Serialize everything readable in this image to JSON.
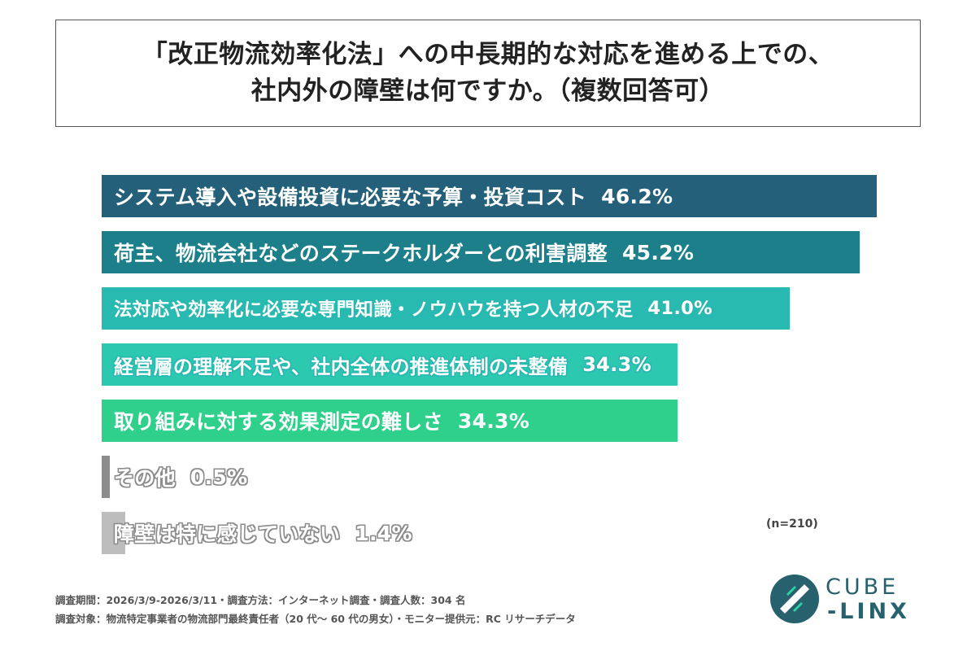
{
  "title": {
    "line1": "「改正物流効率化法」への中長期的な対応を進める上での、",
    "line2": "社内外の障壁は何ですか。（複数回答可）"
  },
  "chart_data": {
    "type": "bar",
    "orientation": "horizontal",
    "categories": [
      "システム導入や設備投資に必要な予算・投資コスト",
      "荷主、物流会社などのステークホルダーとの利害調整",
      "法対応や効率化に必要な専門知識・ノウハウを持つ人材の不足",
      "経営層の理解不足や、社内全体の推進体制の未整備",
      "取り組みに対する効果測定の難しさ",
      "その他",
      "障壁は特に感じていない"
    ],
    "values": [
      46.2,
      45.2,
      41.0,
      34.3,
      34.3,
      0.5,
      1.4
    ],
    "value_labels": [
      "46.2%",
      "45.2%",
      "41.0%",
      "34.3%",
      "34.3%",
      "0.5%",
      "1.4%"
    ],
    "colors": [
      "#24607a",
      "#1d7f8a",
      "#28b9b0",
      "#2cc9b0",
      "#2fd08c",
      "#8c8c8c",
      "#bdbdbd"
    ],
    "xlim": [
      0,
      46.2
    ]
  },
  "n_note": "(n=210)",
  "footnotes": [
    "調査期間：2026/3/9-2026/3/11・調査方法：インターネット調査・調査人数：304 名",
    "調査対象：物流特定事業者の物流部門最終責任者（20 代～ 60 代の男女）・モニター提供元：RC リサーチデータ"
  ],
  "logo": {
    "line1": "CUBE",
    "line2": "-LINX"
  }
}
